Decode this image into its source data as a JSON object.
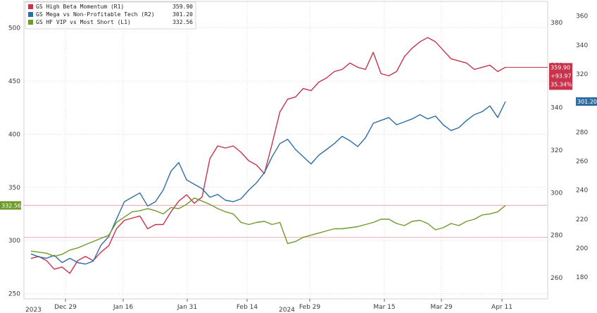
{
  "chart_data": {
    "type": "line",
    "title": "",
    "x_ticks": [
      "Dec 29",
      "Jan 16",
      "Jan 31",
      "Feb 14",
      "Feb 29",
      "Mar 15",
      "Mar 29",
      "Apr 11"
    ],
    "year_labels": [
      "2023",
      "2024"
    ],
    "axes": {
      "L1": {
        "ylim": [
          245,
          525
        ],
        "ticks": [
          250,
          300,
          350,
          400,
          450,
          500
        ]
      },
      "R1": {
        "ylim": [
          250,
          390
        ],
        "ticks": [
          260,
          280,
          300,
          320,
          340,
          360,
          380
        ]
      },
      "R2": {
        "ylim": [
          165,
          370
        ],
        "ticks": [
          180,
          200,
          220,
          240,
          260,
          280,
          300,
          320,
          340,
          360
        ]
      }
    },
    "legend_position": "top-left",
    "series": [
      {
        "name": "GS High Beta Momentum (R1)",
        "axis": "R1",
        "color": "#c8324a",
        "last_value": "359.90",
        "tag_lines": [
          "359.90",
          "+93.97",
          "35.34%"
        ],
        "values": [
          269,
          270,
          268,
          264,
          265,
          262,
          268,
          270,
          268,
          272,
          275,
          283,
          287,
          288,
          289,
          283,
          285,
          285,
          291,
          296,
          299,
          295,
          298,
          316,
          322,
          321,
          322,
          319,
          315,
          313,
          309,
          323,
          338,
          344,
          345,
          349,
          348,
          352,
          354,
          357,
          358,
          361,
          359,
          358,
          366,
          356,
          355,
          357,
          364,
          368,
          371,
          373,
          371,
          367,
          363,
          362,
          361,
          358,
          359,
          360,
          357,
          359
        ]
      },
      {
        "name": "GS Mega vs Non-Profitable Tech (R2)",
        "axis": "R2",
        "color": "#2e6da4",
        "last_value": "301.20",
        "tag_lines": [
          "301.20"
        ],
        "values": [
          196,
          194,
          193,
          195,
          190,
          193,
          190,
          189,
          191,
          202,
          208,
          220,
          232,
          235,
          238,
          229,
          232,
          240,
          253,
          259,
          247,
          244,
          241,
          235,
          237,
          233,
          232,
          234,
          240,
          245,
          252,
          263,
          272,
          275,
          268,
          263,
          258,
          264,
          268,
          272,
          277,
          274,
          270,
          276,
          286,
          288,
          290,
          285,
          287,
          289,
          292,
          289,
          291,
          285,
          281,
          283,
          288,
          292,
          294,
          298,
          290,
          301
        ]
      },
      {
        "name": "GS HF VIP vs Most Short (L1)",
        "axis": "L1",
        "color": "#6f9a2c",
        "last_value": "332.56",
        "tag_lines": [
          "332.56"
        ],
        "values": [
          290,
          289,
          288,
          285,
          287,
          291,
          293,
          296,
          299,
          302,
          305,
          317,
          322,
          327,
          328,
          330,
          328,
          325,
          331,
          330,
          334,
          340,
          337,
          334,
          330,
          327,
          325,
          317,
          315,
          317,
          318,
          315,
          317,
          297,
          299,
          303,
          305,
          307,
          309,
          311,
          311,
          312,
          313,
          315,
          317,
          320,
          320,
          316,
          314,
          318,
          319,
          316,
          310,
          312,
          316,
          314,
          318,
          320,
          324,
          325,
          327,
          333
        ]
      }
    ],
    "reference_lines": [
      {
        "axis": "R1",
        "value": 294,
        "color": "#f2b5c0"
      },
      {
        "axis": "R1",
        "value": 279,
        "color": "#f2b5c0"
      }
    ]
  }
}
